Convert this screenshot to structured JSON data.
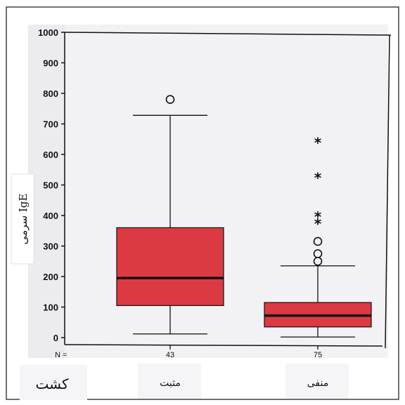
{
  "chart_data": {
    "type": "boxplot",
    "ylabel": "سرمی IgE",
    "ylim": [
      0,
      1000
    ],
    "yticks": [
      0,
      100,
      200,
      300,
      400,
      500,
      600,
      700,
      800,
      900,
      1000
    ],
    "n_prefix": "N =",
    "corner_label": "کشت",
    "groups": [
      {
        "category": "مثبت",
        "n": "43",
        "whisker_low": 12,
        "q1": 105,
        "median": 195,
        "q3": 360,
        "whisker_high": 728,
        "outliers": [
          {
            "value": 780,
            "marker": "circle"
          }
        ]
      },
      {
        "category": "منفی",
        "n": "75",
        "whisker_low": 2,
        "q1": 35,
        "median": 72,
        "q3": 115,
        "whisker_high": 235,
        "outliers": [
          {
            "value": 250,
            "marker": "circle"
          },
          {
            "value": 275,
            "marker": "circle"
          },
          {
            "value": 315,
            "marker": "circle"
          },
          {
            "value": 375,
            "marker": "star"
          },
          {
            "value": 398,
            "marker": "star"
          },
          {
            "value": 525,
            "marker": "star"
          },
          {
            "value": 640,
            "marker": "star"
          }
        ]
      }
    ]
  },
  "colors": {
    "box_fill": "#dc3a42",
    "plot_background": "#f2f1f4",
    "line": "#111111"
  }
}
